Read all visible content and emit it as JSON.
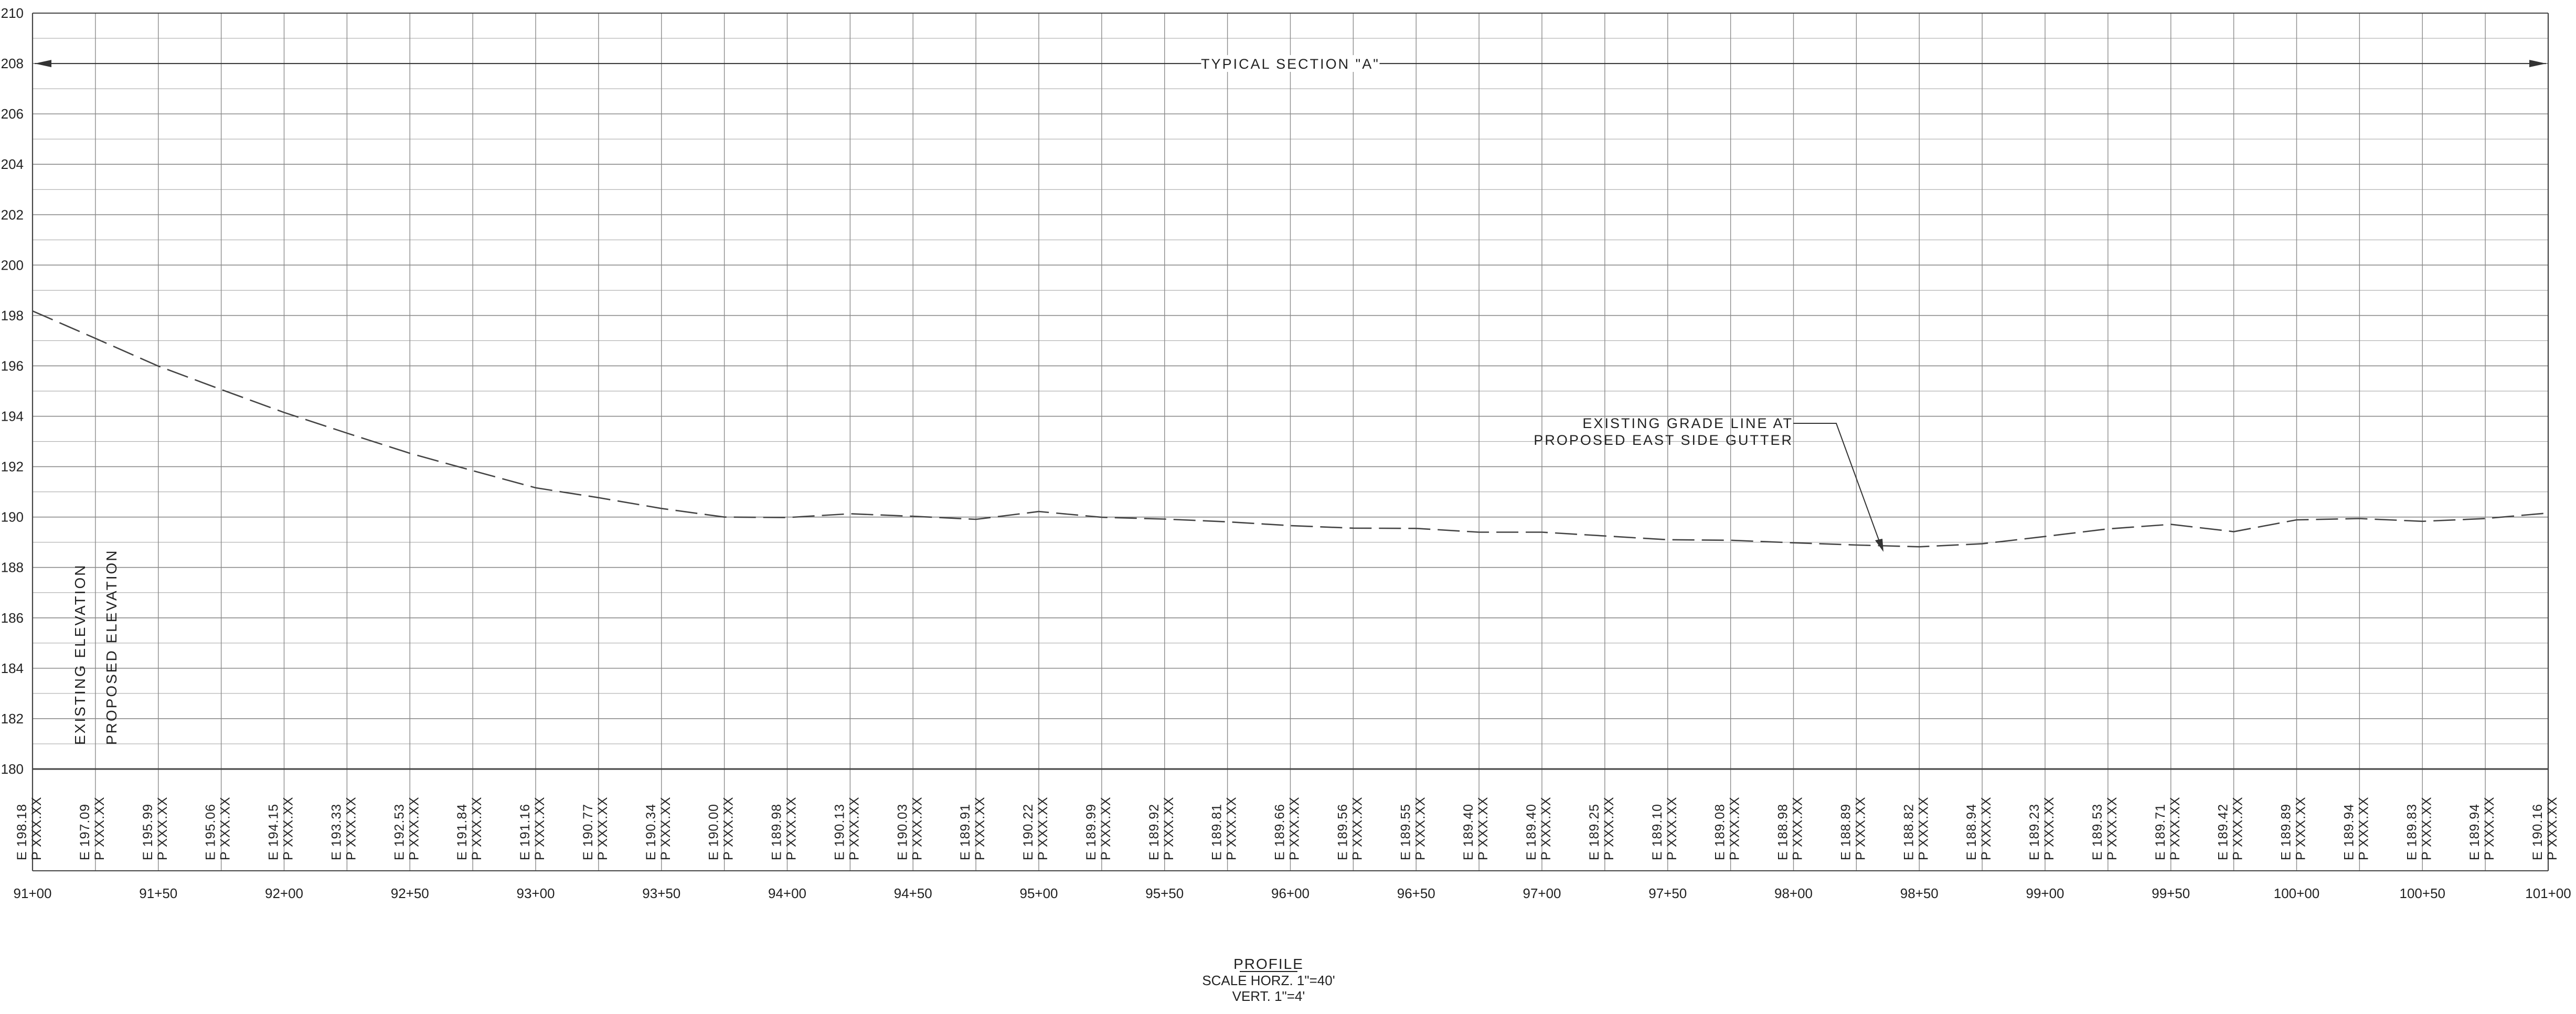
{
  "section_label": "TYPICAL SECTION \"A\"",
  "annotation": {
    "line1": "EXISTING GRADE LINE AT",
    "line2": "PROPOSED EAST SIDE GUTTER"
  },
  "row_labels": {
    "existing": "EXISTING ELEVATION",
    "proposed": "PROPOSED ELEVATION"
  },
  "title": {
    "main": "PROFILE",
    "scale_horz": "SCALE HORZ. 1\"=40'",
    "scale_vert": "VERT. 1\"=4'"
  },
  "colors": {
    "grid": "#a0a0a0",
    "grid_major": "#8a8a8a",
    "frame": "#444444",
    "text": "#222222"
  },
  "chart_data": {
    "type": "line",
    "ylim": [
      180,
      210
    ],
    "y_ticks": [
      210,
      208,
      206,
      204,
      202,
      200,
      198,
      196,
      194,
      192,
      190,
      188,
      186,
      184,
      182,
      180
    ],
    "station_labels": [
      "91+00",
      "91+50",
      "92+00",
      "92+50",
      "93+00",
      "93+50",
      "94+00",
      "94+50",
      "95+00",
      "95+50",
      "96+00",
      "96+50",
      "97+00",
      "97+50",
      "98+00",
      "98+50",
      "99+00",
      "99+50",
      "100+00",
      "100+50",
      "101+00"
    ],
    "station_values": [
      9100,
      9125,
      9150,
      9175,
      9200,
      9225,
      9250,
      9275,
      9300,
      9325,
      9350,
      9375,
      9400,
      9425,
      9450,
      9475,
      9500,
      9525,
      9550,
      9575,
      9600,
      9625,
      9650,
      9675,
      9700,
      9725,
      9750,
      9775,
      9800,
      9825,
      9850,
      9875,
      9900,
      9925,
      9950,
      9975,
      10000,
      10025,
      10050,
      10075,
      10100
    ],
    "existing_elevation_labels": [
      "E 198.18",
      "E 197.09",
      "E 195.99",
      "E 195.06",
      "E 194.15",
      "E 193.33",
      "E 192.53",
      "E 191.84",
      "E 191.16",
      "E 190.77",
      "E 190.34",
      "E 190.00",
      "E 189.98",
      "E 190.13",
      "E 190.03",
      "E 189.91",
      "E 190.22",
      "E 189.99",
      "E 189.92",
      "E 189.81",
      "E 189.66",
      "E 189.56",
      "E 189.55",
      "E 189.40",
      "E 189.40",
      "E 189.25",
      "E 189.10",
      "E 189.08",
      "E 188.98",
      "E 188.89",
      "E 188.82",
      "E 188.94",
      "E 189.23",
      "E 189.53",
      "E 189.71",
      "E 189.42",
      "E 189.89",
      "E 189.94",
      "E 189.83",
      "E 189.94",
      "E 190.16"
    ],
    "existing_elevation_values": [
      198.18,
      197.09,
      195.99,
      195.06,
      194.15,
      193.33,
      192.53,
      191.84,
      191.16,
      190.77,
      190.34,
      190.0,
      189.98,
      190.13,
      190.03,
      189.91,
      190.22,
      189.99,
      189.92,
      189.81,
      189.66,
      189.56,
      189.55,
      189.4,
      189.4,
      189.25,
      189.1,
      189.08,
      188.98,
      188.89,
      188.82,
      188.94,
      189.23,
      189.53,
      189.71,
      189.42,
      189.89,
      189.94,
      189.83,
      189.94,
      190.16
    ],
    "proposed_elevation_label": "P XXX.XX",
    "section_elevation": 208,
    "series": [
      {
        "name": "EXISTING GRADE LINE AT PROPOSED EAST SIDE GUTTER",
        "style": "dashed"
      }
    ]
  }
}
